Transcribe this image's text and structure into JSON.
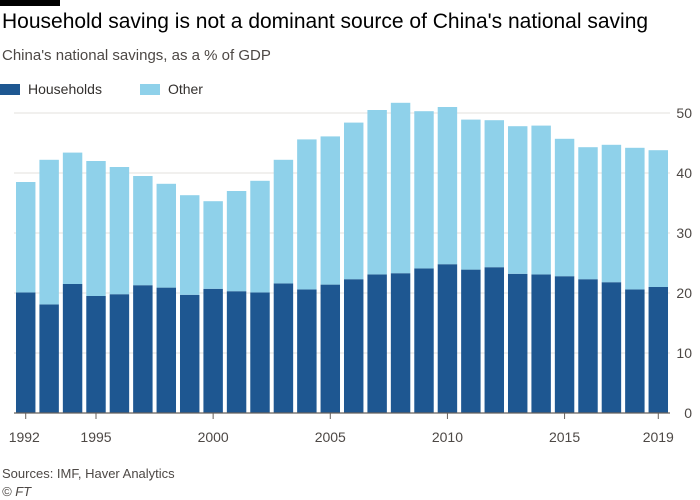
{
  "header": {
    "title": "Household saving is not a dominant source of China's national saving",
    "subtitle": "China's national savings, as a % of GDP"
  },
  "footer": {
    "source": "Sources: IMF, Haver Analytics",
    "copyright": "© FT"
  },
  "colors": {
    "households": "#1e5791",
    "other": "#8fd1ea",
    "grid": "#e3e0dd",
    "axis": "#66605c"
  },
  "chart_data": {
    "type": "bar",
    "stacked": true,
    "x": [
      1992,
      1993,
      1994,
      1995,
      1996,
      1997,
      1998,
      1999,
      2000,
      2001,
      2002,
      2003,
      2004,
      2005,
      2006,
      2007,
      2008,
      2009,
      2010,
      2011,
      2012,
      2013,
      2014,
      2015,
      2016,
      2017,
      2018,
      2019
    ],
    "x_tick_labels": [
      "1992",
      "1995",
      "2000",
      "2005",
      "2010",
      "2015",
      "2019"
    ],
    "series": [
      {
        "name": "Households",
        "values": [
          20.1,
          18.1,
          21.5,
          19.5,
          19.8,
          21.3,
          20.9,
          19.7,
          20.7,
          20.3,
          20.1,
          21.6,
          20.6,
          21.4,
          22.3,
          23.1,
          23.3,
          24.1,
          24.8,
          23.9,
          24.3,
          23.2,
          23.1,
          22.8,
          22.3,
          21.8,
          20.6,
          21.0
        ]
      },
      {
        "name": "Other",
        "values": [
          18.4,
          24.1,
          21.9,
          22.5,
          21.2,
          18.2,
          17.3,
          16.6,
          14.6,
          16.7,
          18.6,
          20.6,
          25.0,
          24.7,
          26.1,
          27.4,
          28.4,
          26.2,
          26.2,
          25.0,
          24.5,
          24.6,
          24.8,
          22.9,
          22.0,
          22.9,
          23.6,
          22.8
        ]
      }
    ],
    "y_ticks": [
      0,
      10,
      20,
      30,
      40,
      50
    ],
    "ylim": [
      0,
      55
    ],
    "y_axis_side": "right",
    "grid": true,
    "legend_position": "top-left"
  }
}
